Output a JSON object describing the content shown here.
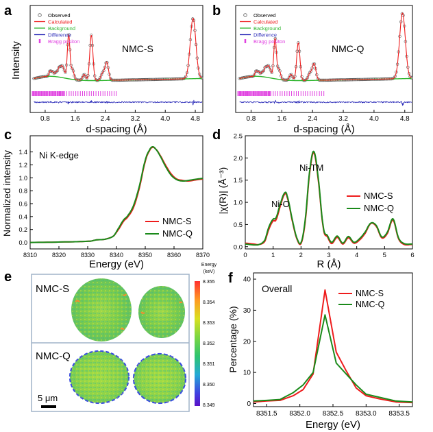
{
  "figure": {
    "panels": [
      {
        "letter": "a"
      },
      {
        "letter": "b"
      },
      {
        "letter": "c"
      },
      {
        "letter": "d"
      },
      {
        "letter": "e"
      },
      {
        "letter": "f"
      }
    ]
  },
  "colors": {
    "observed": "#555555",
    "calculated": "#ee1c1c",
    "background": "#2db52d",
    "difference": "#2a2ab8",
    "bragg": "#e040e0",
    "nmc_s": "#ee1c1c",
    "nmc_q": "#1a8a1a"
  },
  "chart_data": [
    {
      "id": "a",
      "type": "line",
      "title": "NMC-S",
      "xlabel": "d-spacing (Å)",
      "ylabel": "Intensity",
      "xlim": [
        0.4,
        5.0
      ],
      "xticks": [
        "0.8",
        "1.6",
        "2.4",
        "3.2",
        "4.0",
        "4.8"
      ],
      "legend": [
        "Observed",
        "Calculated",
        "Background",
        "Difference",
        "Bragg positon"
      ],
      "peaks": [
        {
          "d": 0.93,
          "h": 0.07
        },
        {
          "d": 1.0,
          "h": 0.06
        },
        {
          "d": 1.09,
          "h": 0.06
        },
        {
          "d": 1.17,
          "h": 0.12
        },
        {
          "d": 1.24,
          "h": 0.13
        },
        {
          "d": 1.3,
          "h": 0.09
        },
        {
          "d": 1.42,
          "h": 0.24
        },
        {
          "d": 1.43,
          "h": 0.35
        },
        {
          "d": 1.53,
          "h": 0.13
        },
        {
          "d": 1.84,
          "h": 0.08
        },
        {
          "d": 2.03,
          "h": 0.6
        },
        {
          "d": 2.33,
          "h": 0.09
        },
        {
          "d": 2.44,
          "h": 0.24
        },
        {
          "d": 4.74,
          "h": 0.8
        }
      ]
    },
    {
      "id": "b",
      "type": "line",
      "title": "NMC-Q",
      "xlabel": "d-spacing (Å)",
      "ylabel": "",
      "xlim": [
        0.4,
        5.0
      ],
      "xticks": [
        "0.8",
        "1.6",
        "2.4",
        "3.2",
        "4.0",
        "4.8"
      ],
      "legend": [
        "Observed",
        "Calculated",
        "Background",
        "Difference",
        "Bragg positon"
      ],
      "peaks": [
        {
          "d": 0.93,
          "h": 0.07
        },
        {
          "d": 1.0,
          "h": 0.06
        },
        {
          "d": 1.09,
          "h": 0.06
        },
        {
          "d": 1.17,
          "h": 0.12
        },
        {
          "d": 1.24,
          "h": 0.13
        },
        {
          "d": 1.3,
          "h": 0.09
        },
        {
          "d": 1.42,
          "h": 0.24
        },
        {
          "d": 1.43,
          "h": 0.3
        },
        {
          "d": 1.53,
          "h": 0.13
        },
        {
          "d": 1.84,
          "h": 0.08
        },
        {
          "d": 2.03,
          "h": 0.5
        },
        {
          "d": 2.33,
          "h": 0.09
        },
        {
          "d": 2.44,
          "h": 0.22
        },
        {
          "d": 4.74,
          "h": 0.87
        }
      ]
    },
    {
      "id": "c",
      "type": "line",
      "annotation": "Ni K-edge",
      "xlabel": "Energy (eV)",
      "ylabel": "Normalized intensity",
      "xlim": [
        8310,
        8370
      ],
      "ylim": [
        -0.1,
        1.65
      ],
      "xticks": [
        8310,
        8320,
        8330,
        8340,
        8350,
        8360,
        8370
      ],
      "yticks": [
        0.0,
        0.2,
        0.4,
        0.6,
        0.8,
        1.0,
        1.2,
        1.4
      ],
      "series": [
        {
          "name": "NMC-S",
          "x": [
            8310,
            8325,
            8331,
            8333,
            8336,
            8339,
            8341,
            8342.5,
            8344,
            8346,
            8348,
            8350,
            8351.5,
            8352.5,
            8353.5,
            8355,
            8357,
            8359,
            8361,
            8363,
            8365,
            8368,
            8370
          ],
          "y": [
            0.0,
            0.01,
            0.02,
            0.04,
            0.05,
            0.1,
            0.22,
            0.33,
            0.4,
            0.55,
            0.85,
            1.25,
            1.42,
            1.47,
            1.45,
            1.36,
            1.2,
            1.06,
            0.98,
            0.96,
            0.95,
            0.97,
            0.98
          ]
        },
        {
          "name": "NMC-Q",
          "x": [
            8310,
            8325,
            8331,
            8333,
            8336,
            8339,
            8341,
            8342.5,
            8344,
            8346,
            8348,
            8350,
            8351.5,
            8352.5,
            8353.5,
            8355,
            8357,
            8359,
            8361,
            8363,
            8365,
            8368,
            8370
          ],
          "y": [
            0.0,
            0.01,
            0.02,
            0.04,
            0.05,
            0.1,
            0.24,
            0.35,
            0.42,
            0.58,
            0.88,
            1.27,
            1.43,
            1.48,
            1.45,
            1.35,
            1.18,
            1.04,
            0.97,
            0.95,
            0.96,
            0.98,
            0.99
          ]
        }
      ]
    },
    {
      "id": "d",
      "type": "line",
      "xlabel": "R (Å)",
      "ylabel": "|χ(R)| (Å⁻³)",
      "xlim": [
        0,
        6
      ],
      "ylim": [
        -0.05,
        2.5
      ],
      "xticks": [
        0,
        1,
        2,
        3,
        4,
        5,
        6
      ],
      "yticks": [
        0.0,
        0.5,
        1.0,
        1.5,
        2.0,
        2.5
      ],
      "annotations": [
        "Ni-O",
        "Ni-TM"
      ],
      "series": [
        {
          "name": "NMC-S",
          "x": [
            0,
            0.3,
            0.5,
            0.7,
            0.85,
            1.0,
            1.1,
            1.25,
            1.4,
            1.5,
            1.7,
            1.85,
            2.0,
            2.15,
            2.3,
            2.45,
            2.6,
            2.8,
            2.95,
            3.1,
            3.3,
            3.5,
            3.7,
            3.9,
            4.1,
            4.3,
            4.5,
            4.7,
            4.9,
            5.1,
            5.3,
            5.5,
            5.7,
            6.0
          ],
          "y": [
            0.08,
            0.06,
            0.05,
            0.12,
            0.4,
            0.58,
            0.6,
            0.9,
            1.17,
            1.12,
            0.55,
            0.18,
            0.07,
            0.55,
            1.6,
            2.12,
            1.6,
            0.42,
            0.22,
            0.07,
            0.21,
            0.06,
            0.2,
            0.08,
            0.15,
            0.3,
            0.52,
            0.46,
            0.2,
            0.3,
            0.6,
            0.18,
            0.05,
            0.05
          ]
        },
        {
          "name": "NMC-Q",
          "x": [
            0,
            0.3,
            0.5,
            0.7,
            0.85,
            1.0,
            1.1,
            1.25,
            1.4,
            1.5,
            1.7,
            1.85,
            2.0,
            2.15,
            2.3,
            2.45,
            2.6,
            2.8,
            2.95,
            3.1,
            3.3,
            3.5,
            3.7,
            3.9,
            4.1,
            4.3,
            4.5,
            4.7,
            4.9,
            5.1,
            5.3,
            5.5,
            5.7,
            6.0
          ],
          "y": [
            0.06,
            0.04,
            0.05,
            0.15,
            0.45,
            0.62,
            0.65,
            0.95,
            1.2,
            1.15,
            0.58,
            0.2,
            0.09,
            0.6,
            1.65,
            2.15,
            1.65,
            0.45,
            0.25,
            0.1,
            0.24,
            0.08,
            0.23,
            0.1,
            0.18,
            0.33,
            0.53,
            0.48,
            0.22,
            0.33,
            0.63,
            0.2,
            0.07,
            0.06
          ]
        }
      ]
    },
    {
      "id": "e",
      "type": "heatmap",
      "rows": [
        "NMC-S",
        "NMC-Q"
      ],
      "scalebar": "5 μm",
      "colorbar_title": [
        "Energy",
        "(keV)"
      ],
      "colorbar_ticks": [
        "8.355",
        "8.354",
        "8.353",
        "8.352",
        "8.351",
        "8.350",
        "8.349"
      ],
      "colorbar_colors": [
        "#ff3030",
        "#ff9a22",
        "#d9e020",
        "#7ad642",
        "#2ec46e",
        "#24a9d6",
        "#4040e0",
        "#5a10c8"
      ]
    },
    {
      "id": "f",
      "type": "line",
      "annotation": "Overall",
      "xlabel": "Energy (eV)",
      "ylabel": "Percentage (%)",
      "xlim": [
        8351.3,
        8353.7
      ],
      "ylim": [
        -1,
        42
      ],
      "xticks": [
        "8351.5",
        "8352.0",
        "8352.5",
        "8353.0",
        "8353.5"
      ],
      "yticks": [
        0,
        10,
        20,
        30,
        40
      ],
      "series": [
        {
          "name": "NMC-S",
          "x": [
            8351.3,
            8351.5,
            8351.7,
            8351.9,
            8352.05,
            8352.2,
            8352.38,
            8352.55,
            8352.7,
            8352.85,
            8353.0,
            8353.2,
            8353.45,
            8353.7
          ],
          "y": [
            0.5,
            0.8,
            1.0,
            2.5,
            4.5,
            9.5,
            36.5,
            16.5,
            10.5,
            5.0,
            2.5,
            1.5,
            0.5,
            0.3
          ]
        },
        {
          "name": "NMC-Q",
          "x": [
            8351.3,
            8351.5,
            8351.7,
            8351.9,
            8352.05,
            8352.2,
            8352.38,
            8352.55,
            8352.7,
            8352.85,
            8353.0,
            8353.2,
            8353.45,
            8353.7
          ],
          "y": [
            0.8,
            1.0,
            1.3,
            3.5,
            6.0,
            10.0,
            28.5,
            13.0,
            9.5,
            6.0,
            3.0,
            2.0,
            0.8,
            0.5
          ]
        }
      ]
    }
  ]
}
